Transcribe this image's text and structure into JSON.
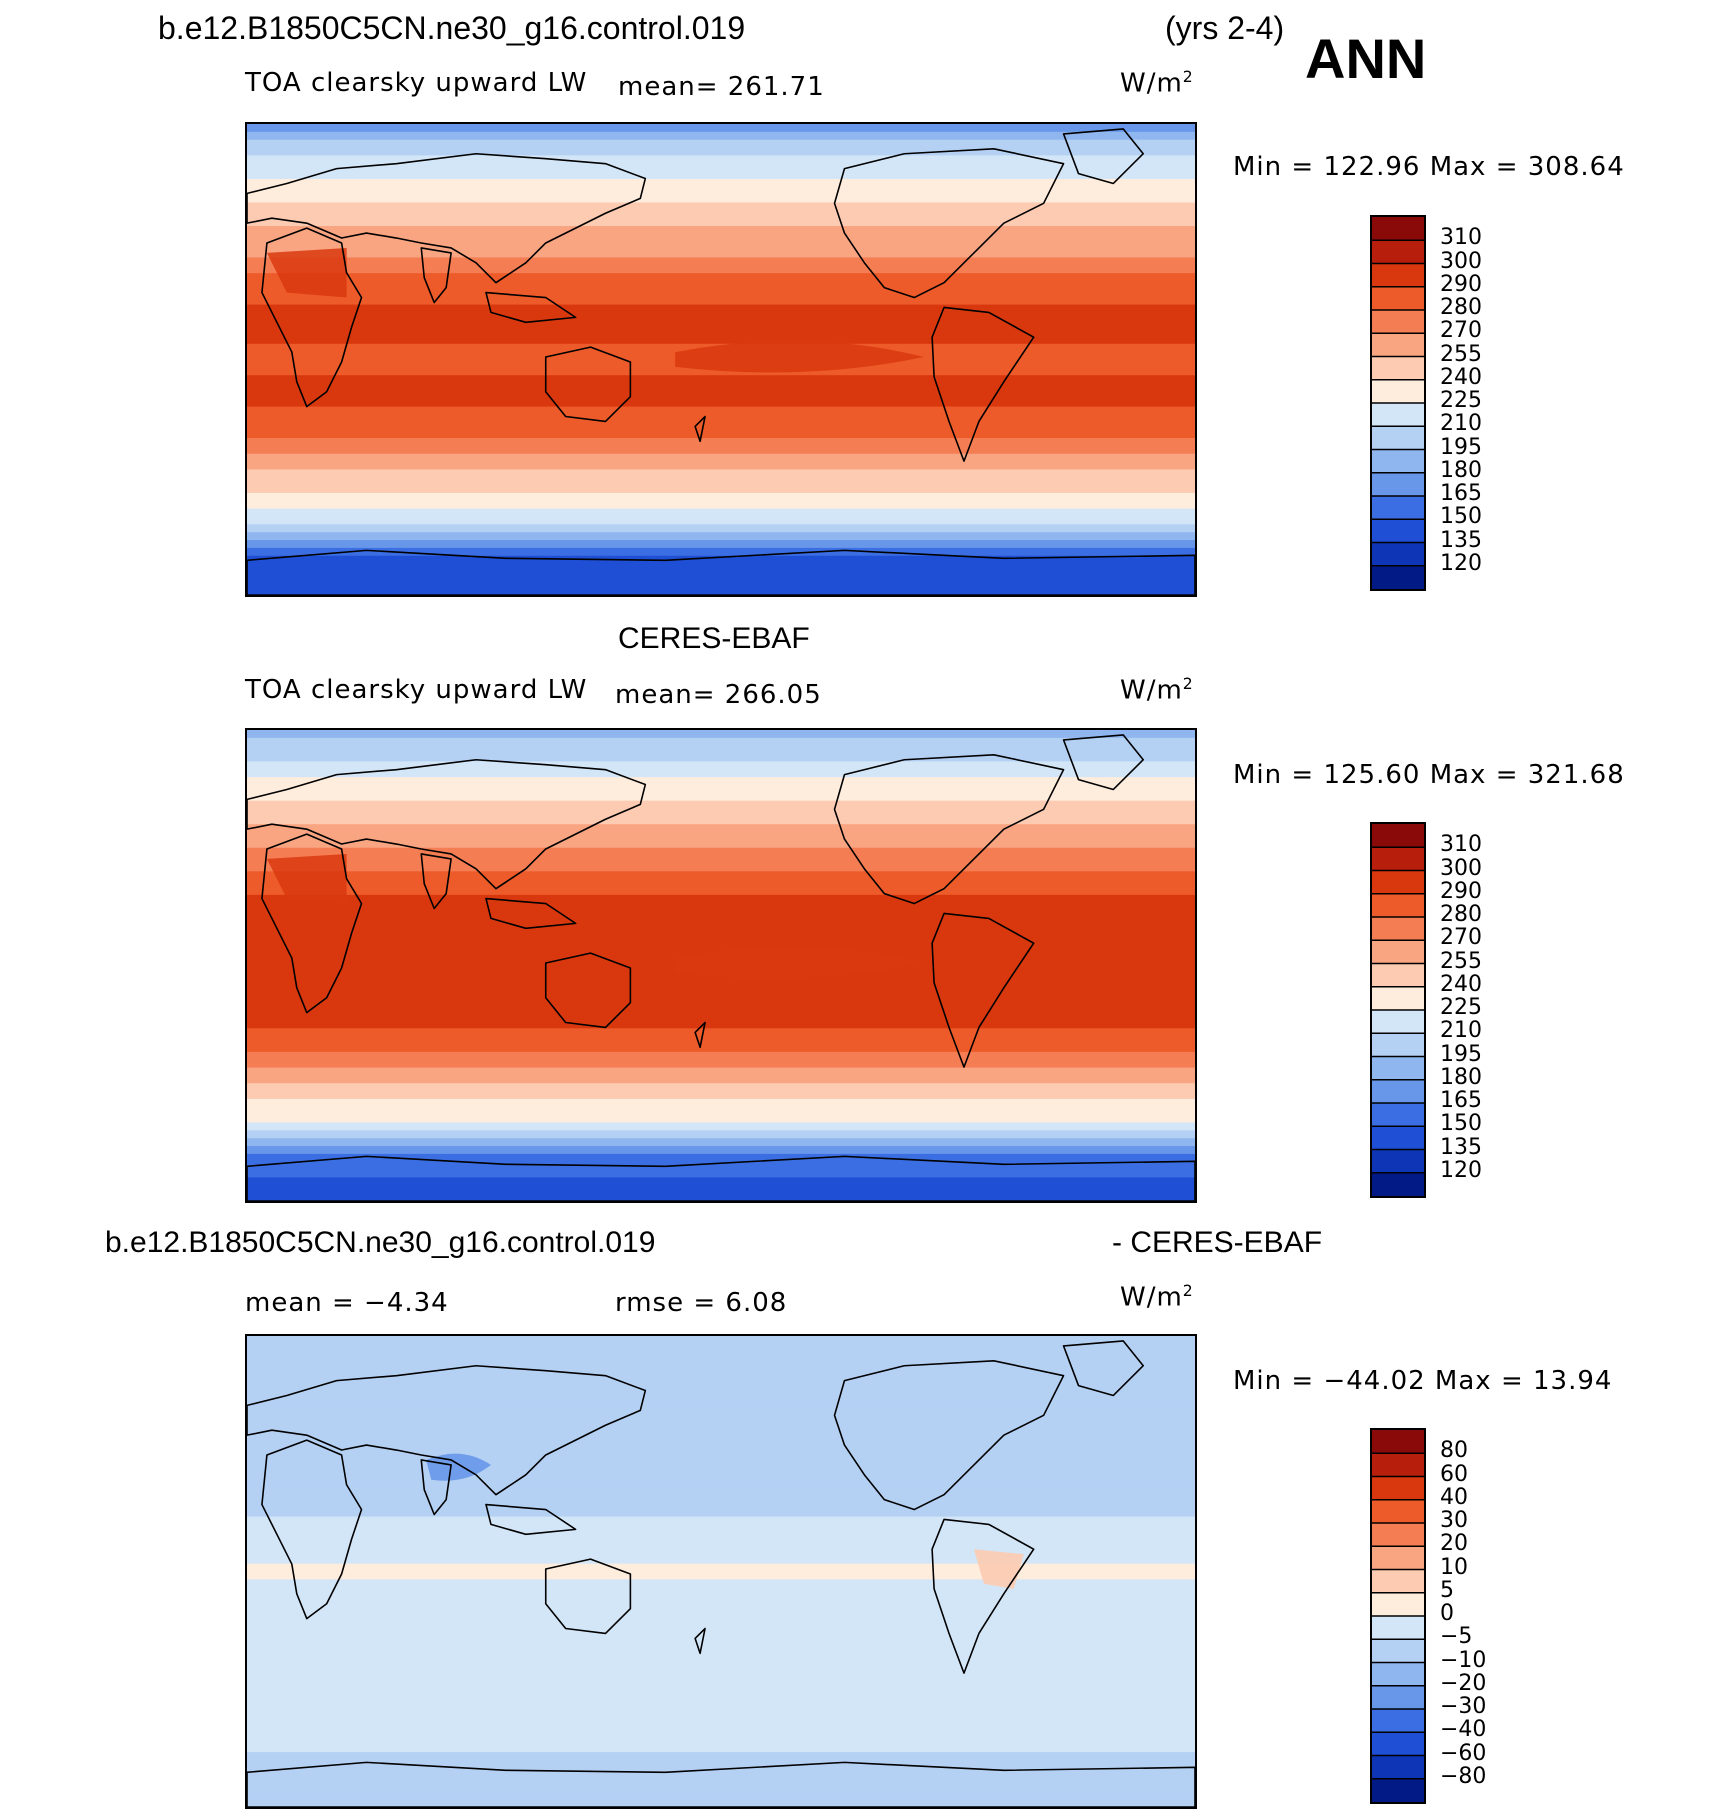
{
  "header": {
    "case_title": "b.e12.B1850C5CN.ne30_g16.control.019",
    "years": "(yrs 2-4)",
    "season": "ANN"
  },
  "panels": [
    {
      "id": "model",
      "title": "",
      "variable": "TOA clearsky upward LW",
      "stat_text": "mean=  261.71",
      "units": "W/m",
      "units_sup": "2",
      "minmax": "Min  =  122.96  Max  =  308.64"
    },
    {
      "id": "obs",
      "title": "CERES-EBAF",
      "variable": "TOA clearsky upward LW",
      "stat_text": "mean=  266.05",
      "units": "W/m",
      "units_sup": "2",
      "minmax": "Min  =  125.60  Max  =  321.68"
    },
    {
      "id": "diff",
      "title": "b.e12.B1850C5CN.ne30_g16.control.019",
      "title_right": "- CERES-EBAF",
      "mean_text": "mean  =   −4.34",
      "rmse_text": "rmse  =     6.08",
      "units": "W/m",
      "units_sup": "2",
      "minmax": "Min  = −44.02  Max  =    13.94"
    }
  ],
  "chart_data": [
    {
      "type": "heatmap",
      "title": "TOA clearsky upward LW (model)",
      "units": "W/m2",
      "mean": 261.71,
      "min": 122.96,
      "max": 308.64,
      "colorbar_levels": [
        310,
        300,
        290,
        280,
        270,
        255,
        240,
        225,
        210,
        195,
        180,
        165,
        150,
        135,
        120
      ],
      "colorbar_colors": [
        "#8a0a0a",
        "#b71f0c",
        "#d9380f",
        "#ee5b2a",
        "#f57d53",
        "#f9a582",
        "#fccbb1",
        "#feecdd",
        "#d3e6f8",
        "#b4d1f4",
        "#8fb6ef",
        "#6897ea",
        "#3b6ee3",
        "#1f4fd5",
        "#0e35b6",
        "#021a85"
      ],
      "zonal_profile_lat": [
        90,
        75,
        60,
        45,
        30,
        15,
        0,
        -15,
        -30,
        -45,
        -60,
        -75,
        -90
      ],
      "zonal_profile_value": [
        175,
        215,
        240,
        262,
        283,
        293,
        288,
        292,
        280,
        250,
        220,
        150,
        135
      ]
    },
    {
      "type": "heatmap",
      "title": "TOA clearsky upward LW (CERES-EBAF)",
      "units": "W/m2",
      "mean": 266.05,
      "min": 125.6,
      "max": 321.68,
      "colorbar_levels": [
        310,
        300,
        290,
        280,
        270,
        255,
        240,
        225,
        210,
        195,
        180,
        165,
        150,
        135,
        120
      ],
      "colorbar_colors": [
        "#8a0a0a",
        "#b71f0c",
        "#d9380f",
        "#ee5b2a",
        "#f57d53",
        "#f9a582",
        "#fccbb1",
        "#feecdd",
        "#d3e6f8",
        "#b4d1f4",
        "#8fb6ef",
        "#6897ea",
        "#3b6ee3",
        "#1f4fd5",
        "#0e35b6",
        "#021a85"
      ],
      "zonal_profile_lat": [
        90,
        75,
        60,
        45,
        30,
        15,
        0,
        -15,
        -30,
        -45,
        -60,
        -75,
        -90
      ],
      "zonal_profile_value": [
        185,
        220,
        245,
        268,
        288,
        297,
        292,
        296,
        285,
        255,
        222,
        155,
        140
      ]
    },
    {
      "type": "heatmap",
      "title": "Model - CERES-EBAF",
      "units": "W/m2",
      "mean": -4.34,
      "rmse": 6.08,
      "min": -44.02,
      "max": 13.94,
      "colorbar_levels": [
        80,
        60,
        40,
        30,
        20,
        10,
        5,
        0,
        -5,
        -10,
        -20,
        -30,
        -40,
        -60,
        -80
      ],
      "colorbar_colors": [
        "#8a0a0a",
        "#b71f0c",
        "#d9380f",
        "#ee5b2a",
        "#f57d53",
        "#f9a582",
        "#fccbb1",
        "#feecdd",
        "#d3e6f8",
        "#b4d1f4",
        "#8fb6ef",
        "#6897ea",
        "#3b6ee3",
        "#1f4fd5",
        "#0e35b6",
        "#021a85"
      ],
      "zonal_profile_lat": [
        90,
        75,
        60,
        45,
        30,
        15,
        0,
        -15,
        -30,
        -45,
        -60,
        -75,
        -90
      ],
      "zonal_profile_value": [
        -8,
        -6,
        -5,
        -6,
        -7,
        -4,
        1,
        -3,
        -5,
        -5,
        -3,
        -6,
        -5
      ]
    }
  ]
}
